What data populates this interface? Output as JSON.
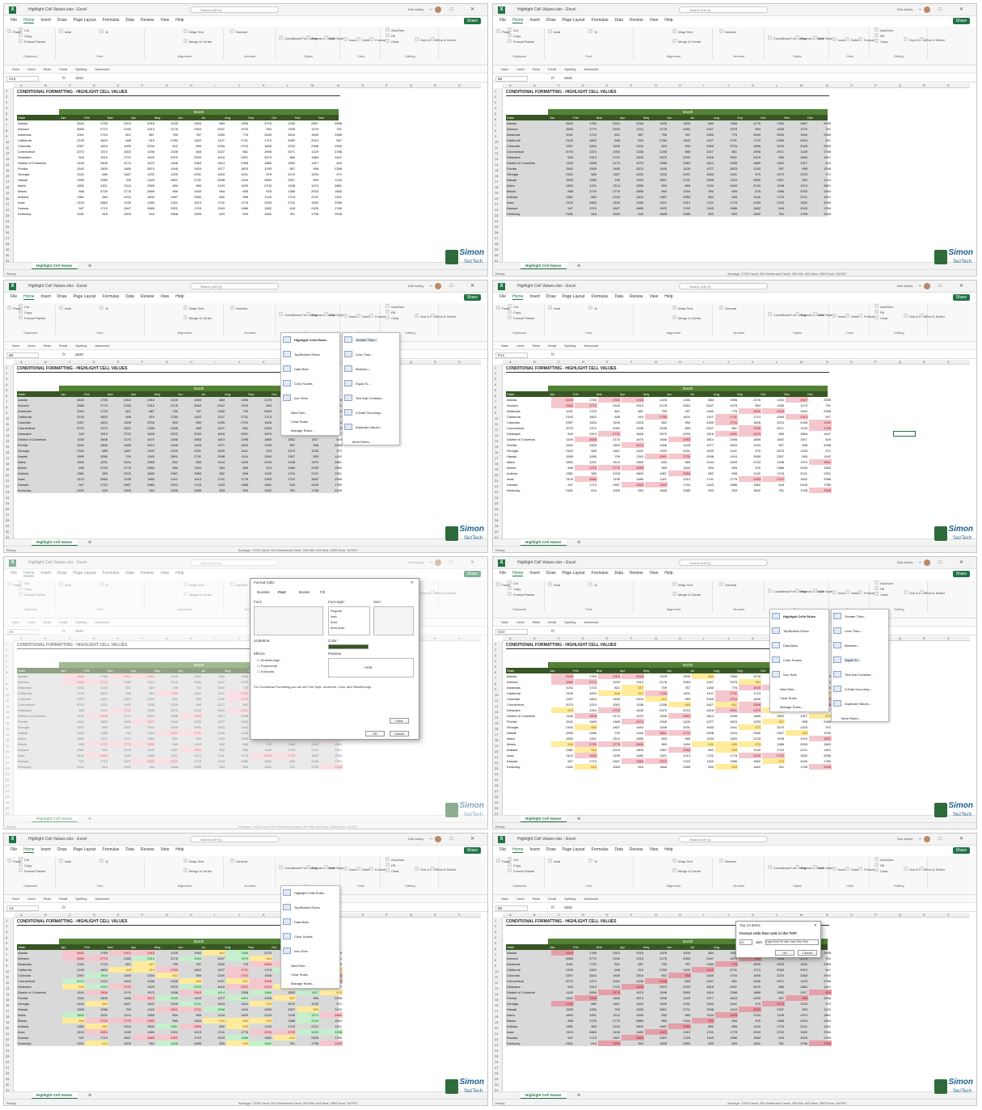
{
  "window": {
    "title": "Highlight Cell Values.xlsx - Excel",
    "search": "Search (Alt+Q)",
    "user": "Deb Ashby",
    "share": "Share",
    "app_icon": "X",
    "window_controls": "– □ ✕"
  },
  "menu": [
    "File",
    "Home",
    "Insert",
    "Draw",
    "Page Layout",
    "Formulas",
    "Data",
    "Review",
    "View",
    "Help"
  ],
  "ribbon": {
    "groups": [
      "Clipboard",
      "Font",
      "Alignment",
      "Number",
      "Styles",
      "Cells",
      "Editing"
    ],
    "paste": "Paste",
    "cut": "Cut",
    "copy": "Copy",
    "format_painter": "Format Painter",
    "font": "Arial",
    "size": "11",
    "wrap": "Wrap Text",
    "merge": "Merge & Center",
    "number_format": "Number",
    "number_format_general": "General",
    "cond_format": "Conditional Formatting",
    "format_table": "Format as Table",
    "cell_styles": "Cell Styles",
    "insert": "Insert",
    "delete": "Delete",
    "format": "Format",
    "autosum": "AutoSum",
    "fill": "Fill",
    "clear": "Clear",
    "sort": "Sort & Filter",
    "find": "Find & Select"
  },
  "qat": [
    "Save",
    "Undo",
    "Redo",
    "Email",
    "Spelling",
    "Advanced"
  ],
  "columns": [
    "A",
    "B",
    "C",
    "D",
    "E",
    "F",
    "G",
    "H",
    "I",
    "J",
    "K",
    "L",
    "M",
    "N",
    "O",
    "P",
    "Q",
    "R",
    "S"
  ],
  "sheet": {
    "title": "CONDITIONAL FORMATTING - HIGHLIGHT CELL VALUES",
    "month_header": "Month",
    "state_header": "State",
    "months": [
      "Jan",
      "Feb",
      "Mar",
      "Apr",
      "May",
      "Jun",
      "Jul",
      "Aug",
      "Sep",
      "Oct",
      "Nov",
      "Dec"
    ],
    "rows": [
      {
        "state": "Alaska",
        "v": [
          "2640",
          "1765",
          "2913",
          "2918",
          "1025",
          "1000",
          "684",
          "1956",
          "2276",
          "1332",
          "2667",
          "2595"
        ]
      },
      {
        "state": "Arizona",
        "v": [
          "2683",
          "2774",
          "2163",
          "1913",
          "2178",
          "2064",
          "2447",
          "1975",
          "554",
          "1335",
          "1279",
          "751"
        ]
      },
      {
        "state": "Arkansas",
        "v": [
          "1041",
          "1723",
          "821",
          "687",
          "759",
          "787",
          "1260",
          "776",
          "2649",
          "2643",
          "1540",
          "2365"
        ]
      },
      {
        "state": "California",
        "v": [
          "2193",
          "1602",
          "648",
          "519",
          "2780",
          "1402",
          "1107",
          "2731",
          "1713",
          "2050",
          "2913",
          "547"
        ]
      },
      {
        "state": "Colorado",
        "v": [
          "2397",
          "1824",
          "1409",
          "2204",
          "502",
          "959",
          "2269",
          "2704",
          "1606",
          "2224",
          "2348",
          "2940"
        ]
      },
      {
        "state": "Connecticut",
        "v": [
          "2073",
          "1374",
          "1002",
          "1336",
          "2158",
          "565",
          "2427",
          "561",
          "2906",
          "2571",
          "1129",
          "2788"
        ]
      },
      {
        "state": "Delaware",
        "v": [
          "543",
          "1913",
          "2722",
          "1626",
          "2570",
          "2033",
          "1616",
          "2901",
          "2675",
          "680",
          "1684",
          "1447"
        ]
      },
      {
        "state": "District of Columbia",
        "v": [
          "1150",
          "2608",
          "2174",
          "1670",
          "1458",
          "2963",
          "1814",
          "2398",
          "1889",
          "1552",
          "1917",
          "619"
        ]
      },
      {
        "state": "Florida",
        "v": [
          "1542",
          "1505",
          "1465",
          "2874",
          "1946",
          "1426",
          "1077",
          "1823",
          "1293",
          "557",
          "998",
          "2268"
        ]
      },
      {
        "state": "Georgia",
        "v": [
          "2162",
          "689",
          "1467",
          "1492",
          "1209",
          "2031",
          "1633",
          "1441",
          "575",
          "2470",
          "1233",
          "972"
        ]
      },
      {
        "state": "Hawaii",
        "v": [
          "1599",
          "1056",
          "709",
          "1343",
          "2801",
          "2731",
          "2098",
          "1194",
          "2590",
          "2307",
          "553",
          "1192"
        ]
      },
      {
        "state": "Idaho",
        "v": [
          "1892",
          "1201",
          "2114",
          "1555",
          "834",
          "965",
          "1134",
          "1409",
          "2133",
          "1198",
          "1974",
          "2861"
        ]
      },
      {
        "state": "Illinois",
        "v": [
          "558",
          "2729",
          "2775",
          "2859",
          "969",
          "1154",
          "594",
          "655",
          "676",
          "1386",
          "2033",
          "1563"
        ]
      },
      {
        "state": "Indiana",
        "v": [
          "1381",
          "583",
          "2215",
          "1600",
          "1967",
          "2950",
          "892",
          "698",
          "1140",
          "1715",
          "2121",
          "1301"
        ]
      },
      {
        "state": "Iowa",
        "v": [
          "2115",
          "2663",
          "1195",
          "1480",
          "1321",
          "1013",
          "1741",
          "1778",
          "2933",
          "2702",
          "1832",
          "2056"
        ]
      },
      {
        "state": "Kansas",
        "v": [
          "947",
          "1713",
          "2467",
          "2665",
          "2922",
          "1743",
          "1163",
          "1986",
          "1562",
          "618",
          "2426",
          "1780"
        ]
      },
      {
        "state": "Kentucky",
        "v": [
          "2181",
          "616",
          "1009",
          "944",
          "1848",
          "2485",
          "833",
          "593",
          "1842",
          "761",
          "1798",
          "2928"
        ]
      }
    ]
  },
  "panels": [
    {
      "name_box": "H13",
      "formula": "1814"
    },
    {
      "name_box": "B6",
      "formula": "2640"
    },
    {
      "name_box": "B6",
      "formula": "2640"
    },
    {
      "name_box": "P12",
      "formula": ""
    },
    {
      "name_box": "B6",
      "formula": "2640"
    },
    {
      "name_box": "O10",
      "formula": ""
    },
    {
      "name_box": "A4",
      "formula": ""
    },
    {
      "name_box": "B6",
      "formula": "2640"
    }
  ],
  "status": {
    "ready": "Ready",
    "summary": "Average: 1705   Count: 204   Numerical Count: 204   Min: 502   Max: 2963   Sum: 347907"
  },
  "tab_label": "Highlight Cell Values",
  "logo": {
    "name": "Simon",
    "sub": "SezTech"
  },
  "cf_menu": {
    "items": [
      "Highlight Cells Rules",
      "Top/Bottom Rules",
      "Data Bars",
      "Color Scales",
      "Icon Sets",
      "New Rule...",
      "Clear Rules",
      "Manage Rules..."
    ],
    "sub": [
      "Greater Than...",
      "Less Than...",
      "Between...",
      "Equal To...",
      "Text that Contains...",
      "A Date Occurring...",
      "Duplicate Values...",
      "More Rules..."
    ]
  },
  "format_cells": {
    "title": "Format Cells",
    "tabs": [
      "Number",
      "Font",
      "Border",
      "Fill"
    ],
    "font_label": "Font:",
    "style_label": "Font style:",
    "size_label": "Size:",
    "styles": [
      "Regular",
      "Italic",
      "Bold",
      "Bold Italic"
    ],
    "effects": "Effects",
    "strike": "Strikethrough",
    "super": "Superscript",
    "sub": "Subscript",
    "underline": "Underline:",
    "color": "Color:",
    "preview": "Preview",
    "preview_text": "Arial",
    "note": "For Conditional Formatting you can set Font Style, Underline, Color, and Strikethrough.",
    "clear": "Clear",
    "ok": "OK",
    "cancel": "Cancel"
  },
  "top10": {
    "title": "Top 10 Items",
    "prompt": "Format cells that rank in the TOP:",
    "value": "10",
    "with": "with",
    "fmt": "Light Red Fill with Dark Red Text",
    "ok": "OK",
    "cancel": "Cancel"
  },
  "colors": {
    "excel_green": "#217346",
    "header_green": "#375623",
    "month_green": "#548235",
    "pink": "#f4c7ce",
    "yellow": "#ffeb9c",
    "green_fill": "#c6efce",
    "dark_pink": "#e4a0aa"
  }
}
